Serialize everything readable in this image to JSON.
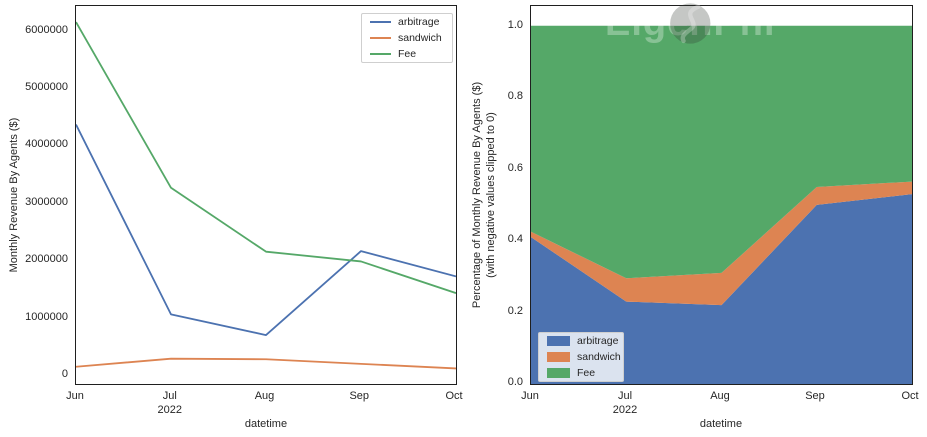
{
  "watermark": {
    "text": "EigenPhi"
  },
  "chart_data": [
    {
      "type": "line",
      "title": "",
      "xlabel": "datetime",
      "ylabel": "Monthly Revenue By Agents ($)",
      "categories": [
        "Jun",
        "Jul",
        "Aug",
        "Sep",
        "Oct"
      ],
      "year_label": "2022",
      "year_under_category": "Jul",
      "ylim": [
        -140000,
        6430000
      ],
      "grid": false,
      "legend_position": "upper right",
      "yticks": [
        {
          "value": 0,
          "label": "0"
        },
        {
          "value": 1000000,
          "label": "1000000"
        },
        {
          "value": 2000000,
          "label": "2000000"
        },
        {
          "value": 3000000,
          "label": "3000000"
        },
        {
          "value": 4000000,
          "label": "4000000"
        },
        {
          "value": 5000000,
          "label": "5000000"
        },
        {
          "value": 6000000,
          "label": "6000000"
        }
      ],
      "series": [
        {
          "name": "arbitrage",
          "color": "#4c72b0",
          "values": [
            4370000,
            1070000,
            710000,
            2170000,
            1730000
          ]
        },
        {
          "name": "sandwich",
          "color": "#dd8452",
          "values": [
            160000,
            300000,
            290000,
            210000,
            130000
          ]
        },
        {
          "name": "Fee",
          "color": "#55a868",
          "values": [
            6150000,
            3270000,
            2160000,
            1990000,
            1440000
          ]
        }
      ]
    },
    {
      "type": "area",
      "stacked": true,
      "normalized": true,
      "title": "",
      "xlabel": "datetime",
      "ylabel": "Percentage of Monthly Revenue By Agents ($)",
      "ylabel_line2": "(with negative values clipped to 0)",
      "categories": [
        "Jun",
        "Jul",
        "Aug",
        "Sep",
        "Oct"
      ],
      "year_label": "2022",
      "year_under_category": "Jul",
      "ylim": [
        0,
        1.055
      ],
      "grid": false,
      "legend_position": "lower left",
      "yticks": [
        {
          "value": 0.0,
          "label": "0.0"
        },
        {
          "value": 0.2,
          "label": "0.2"
        },
        {
          "value": 0.4,
          "label": "0.4"
        },
        {
          "value": 0.6,
          "label": "0.6"
        },
        {
          "value": 0.8,
          "label": "0.8"
        },
        {
          "value": 1.0,
          "label": "1.0"
        }
      ],
      "series": [
        {
          "name": "arbitrage",
          "color": "#4c72b0",
          "values": [
            0.41,
            0.23,
            0.22,
            0.5,
            0.53
          ]
        },
        {
          "name": "sandwich",
          "color": "#dd8452",
          "values": [
            0.015,
            0.065,
            0.09,
            0.05,
            0.035
          ]
        },
        {
          "name": "Fee",
          "color": "#55a868",
          "values": [
            0.575,
            0.705,
            0.69,
            0.45,
            0.435
          ]
        }
      ]
    }
  ]
}
